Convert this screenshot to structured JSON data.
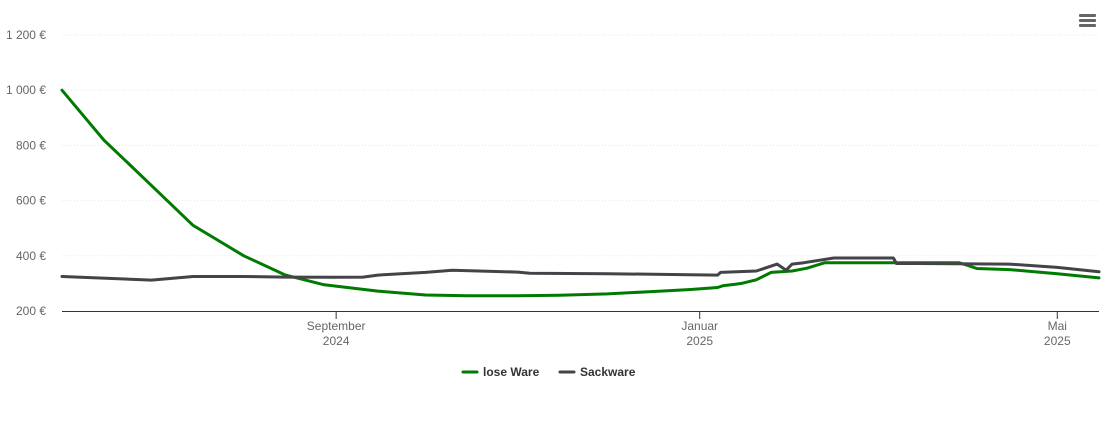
{
  "chart_data": {
    "type": "line",
    "title": "",
    "xlabel": "",
    "ylabel": "",
    "ylim": [
      200,
      1200
    ],
    "y_ticks": [
      200,
      400,
      600,
      800,
      1000,
      1200
    ],
    "y_tick_labels": [
      "200 €",
      "400 €",
      "600 €",
      "800 €",
      "1 000 €",
      "1 200 €"
    ],
    "xlim": [
      "2024-06-01",
      "2025-05-15"
    ],
    "x_ticks": [
      {
        "date": "2024-09-01",
        "month": "September",
        "year": "2024"
      },
      {
        "date": "2025-01-01",
        "month": "Januar",
        "year": "2025"
      },
      {
        "date": "2025-05-01",
        "month": "Mai",
        "year": "2025"
      }
    ],
    "grid": true,
    "legend_position": "bottom-center",
    "series": [
      {
        "name": "lose Ware",
        "color": "#007a00",
        "x": [
          "2024-06-01",
          "2024-06-15",
          "2024-07-01",
          "2024-07-15",
          "2024-08-01",
          "2024-08-15",
          "2024-08-28",
          "2024-09-15",
          "2024-10-01",
          "2024-10-15",
          "2024-11-01",
          "2024-11-15",
          "2024-12-01",
          "2024-12-15",
          "2024-12-29",
          "2025-01-07",
          "2025-01-09",
          "2025-01-13",
          "2025-01-15",
          "2025-01-20",
          "2025-01-25",
          "2025-02-01",
          "2025-02-06",
          "2025-02-12",
          "2025-02-22",
          "2025-03-15",
          "2025-03-29",
          "2025-04-01",
          "2025-04-04",
          "2025-04-15",
          "2025-05-01",
          "2025-05-15"
        ],
        "values": [
          1000,
          820,
          655,
          510,
          400,
          330,
          295,
          272,
          258,
          255,
          255,
          257,
          262,
          270,
          278,
          285,
          292,
          297,
          300,
          313,
          340,
          345,
          355,
          375,
          375,
          375,
          375,
          365,
          354,
          350,
          335,
          320
        ]
      },
      {
        "name": "Sackware",
        "color": "#434348",
        "x": [
          "2024-06-01",
          "2024-07-01",
          "2024-07-15",
          "2024-08-01",
          "2024-08-15",
          "2024-09-01",
          "2024-09-10",
          "2024-09-15",
          "2024-10-01",
          "2024-10-10",
          "2024-11-01",
          "2024-11-05",
          "2024-12-01",
          "2025-01-07",
          "2025-01-08",
          "2025-01-20",
          "2025-01-27",
          "2025-01-30",
          "2025-02-01",
          "2025-02-05",
          "2025-02-15",
          "2025-03-07",
          "2025-03-08",
          "2025-03-15",
          "2025-04-15",
          "2025-05-01",
          "2025-05-15"
        ],
        "values": [
          325,
          312,
          325,
          325,
          323,
          322,
          323,
          330,
          340,
          348,
          341,
          337,
          335,
          330,
          340,
          345,
          370,
          348,
          370,
          375,
          392,
          392,
          372,
          372,
          370,
          358,
          342
        ]
      }
    ]
  },
  "toolbar": {
    "menu_icon": "hamburger-menu-icon"
  }
}
